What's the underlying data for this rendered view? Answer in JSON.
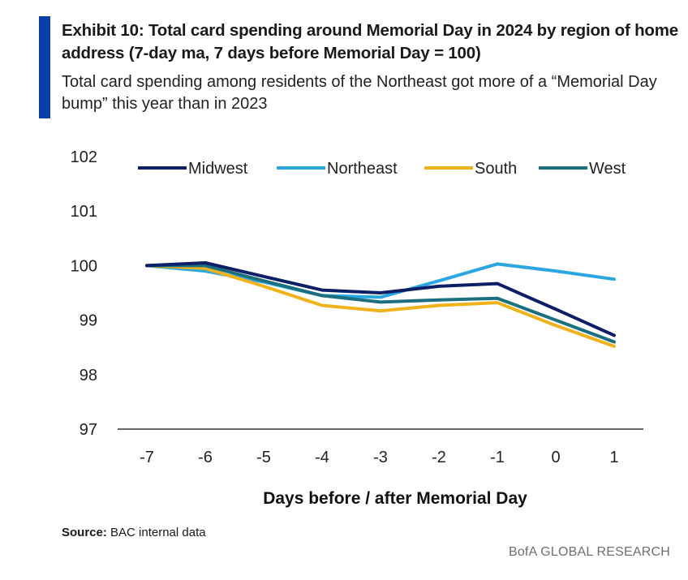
{
  "title": "Exhibit 10: Total card spending around Memorial Day in 2024 by region of home address (7-day ma, 7 days before Memorial Day = 100)",
  "subtitle": "Total card spending among residents of the Northeast got more of a “Memorial Day bump” this year than in 2023",
  "source_label": "Source:",
  "source_text": " BAC internal data",
  "brand": "BofA GLOBAL RESEARCH",
  "colors": {
    "accent": "#0a3ea8",
    "Midwest": "#0d1f66",
    "Northeast": "#2aa6e0",
    "South": "#f0b21b",
    "West": "#1c6f7f",
    "axis": "#333333"
  },
  "chart_data": {
    "type": "line",
    "title": "Total card spending around Memorial Day in 2024 by region of home address",
    "xlabel": "Days before / after Memorial Day",
    "ylabel": "",
    "x": [
      -7,
      -6,
      -5,
      -4,
      -3,
      -2,
      -1,
      0,
      1
    ],
    "x_tick_labels": [
      "-7",
      "-6",
      "-5",
      "-4",
      "-3",
      "-2",
      "-1",
      "0",
      "1"
    ],
    "y_ticks": [
      97,
      98,
      99,
      100,
      101,
      102
    ],
    "ylim": [
      97,
      102
    ],
    "legend_position": "top",
    "series": [
      {
        "name": "Midwest",
        "values": [
          100.0,
          100.05,
          99.8,
          99.55,
          99.5,
          99.62,
          99.67,
          99.2,
          98.72
        ]
      },
      {
        "name": "Northeast",
        "values": [
          100.0,
          99.9,
          99.7,
          99.45,
          99.42,
          99.72,
          100.03,
          99.9,
          99.75
        ]
      },
      {
        "name": "South",
        "values": [
          100.0,
          99.95,
          99.62,
          99.27,
          99.17,
          99.27,
          99.32,
          98.9,
          98.52
        ]
      },
      {
        "name": "West",
        "values": [
          100.0,
          100.0,
          99.72,
          99.45,
          99.33,
          99.37,
          99.4,
          99.0,
          98.6
        ]
      }
    ]
  }
}
